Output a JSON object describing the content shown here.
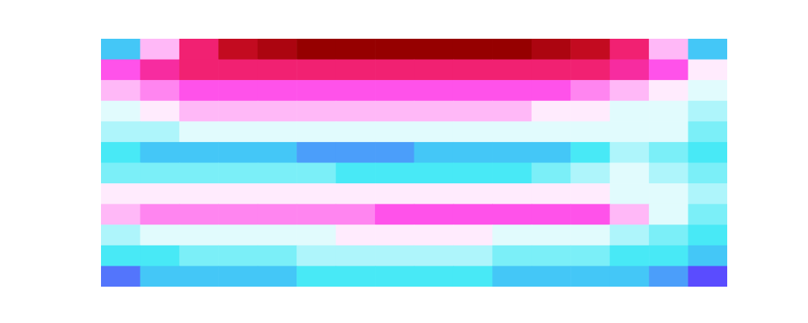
{
  "chart_data": {
    "type": "heatmap",
    "tick_labels": false,
    "cells": [
      [
        2,
        5,
        7.5,
        9,
        9.5,
        10,
        10,
        10,
        10,
        10,
        10,
        9.5,
        9,
        7.5,
        5,
        2
      ],
      [
        6,
        7,
        7.5,
        7.5,
        7.5,
        7.5,
        7.5,
        7.5,
        7.5,
        7.5,
        7.5,
        7.5,
        7.5,
        7,
        6,
        4.5
      ],
      [
        5,
        5.5,
        6,
        6,
        6,
        6,
        6,
        6,
        6,
        6,
        6,
        6,
        5.5,
        5,
        4.5,
        4
      ],
      [
        4,
        4.5,
        5,
        5,
        5,
        5,
        5,
        5,
        5,
        5,
        5,
        4.5,
        4.5,
        4,
        4,
        3.5
      ],
      [
        3.5,
        3.5,
        4,
        4,
        4,
        4,
        4,
        4,
        4,
        4,
        4,
        4,
        4,
        4,
        4,
        3
      ],
      [
        2.5,
        2,
        2,
        2,
        2,
        1.5,
        1.5,
        1.5,
        2,
        2,
        2,
        2,
        2.5,
        3.5,
        3,
        2.5
      ],
      [
        3,
        3,
        3,
        3,
        3,
        3,
        2.5,
        2.5,
        2.5,
        2.5,
        2.5,
        3,
        3.5,
        4,
        3.5,
        3
      ],
      [
        4.5,
        4.5,
        4.5,
        4.5,
        4.5,
        4.5,
        4.5,
        4.5,
        4.5,
        4.5,
        4.5,
        4.5,
        4.5,
        4,
        4,
        3.5
      ],
      [
        5,
        5.5,
        5.5,
        5.5,
        5.5,
        5.5,
        5.5,
        6,
        6,
        6,
        6,
        6,
        6,
        5,
        4,
        3
      ],
      [
        3.5,
        4,
        4,
        4,
        4,
        4,
        4.5,
        4.5,
        4.5,
        4.5,
        4,
        4,
        4,
        3.5,
        3,
        2.5
      ],
      [
        2.5,
        2.5,
        3,
        3,
        3,
        3.5,
        3.5,
        3.5,
        3.5,
        3.5,
        3,
        3,
        3,
        2.5,
        2.5,
        2
      ],
      [
        1,
        2,
        2,
        2,
        2,
        2.5,
        2.5,
        2.5,
        2.5,
        2.5,
        2,
        2,
        2,
        2,
        1.5,
        0.5
      ]
    ]
  }
}
